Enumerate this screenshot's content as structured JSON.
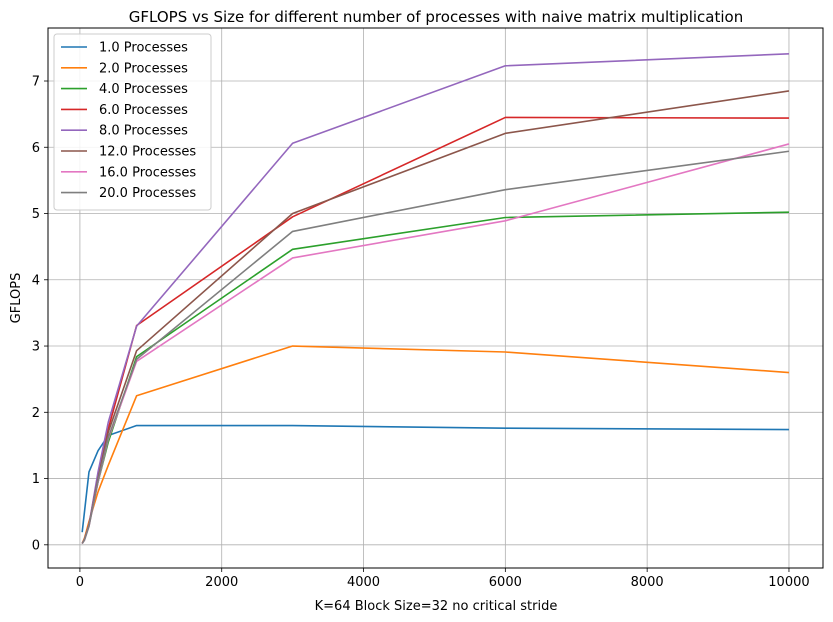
{
  "chart_data": {
    "type": "line",
    "title": "GFLOPS vs Size for different number of processes with naive matrix multiplication",
    "xlabel": "K=64 Block Size=32 no critical stride",
    "ylabel": "GFLOPS",
    "xlim": [
      -450,
      10480
    ],
    "ylim": [
      -0.35,
      7.8
    ],
    "xticks": [
      0,
      2000,
      4000,
      6000,
      8000,
      10000
    ],
    "yticks": [
      0,
      1,
      2,
      3,
      4,
      5,
      6,
      7
    ],
    "grid": true,
    "legend_position": "top-left",
    "series": [
      {
        "name": "1.0 Processes",
        "color": "#1f77b4",
        "x": [
          32,
          128,
          256,
          400,
          800,
          3000,
          6000,
          10000
        ],
        "y": [
          0.19,
          1.1,
          1.42,
          1.65,
          1.8,
          1.8,
          1.76,
          1.74
        ]
      },
      {
        "name": "2.0 Processes",
        "color": "#ff7f0e",
        "x": [
          32,
          64,
          128,
          256,
          400,
          800,
          3000,
          6000,
          10000
        ],
        "y": [
          0.02,
          0.1,
          0.35,
          0.8,
          1.2,
          2.25,
          3.0,
          2.91,
          2.6
        ]
      },
      {
        "name": "4.0 Processes",
        "color": "#2ca02c",
        "x": [
          32,
          64,
          128,
          256,
          400,
          800,
          3000,
          6000,
          10000
        ],
        "y": [
          0.02,
          0.08,
          0.3,
          0.95,
          1.55,
          2.84,
          4.46,
          4.94,
          5.02
        ]
      },
      {
        "name": "6.0 Processes",
        "color": "#d62728",
        "x": [
          32,
          64,
          128,
          256,
          400,
          800,
          3000,
          6000,
          10000
        ],
        "y": [
          0.02,
          0.08,
          0.3,
          1.05,
          1.75,
          3.31,
          4.95,
          6.45,
          6.44
        ]
      },
      {
        "name": "8.0 Processes",
        "color": "#9467bd",
        "x": [
          32,
          64,
          128,
          256,
          400,
          800,
          3000,
          6000,
          10000
        ],
        "y": [
          0.02,
          0.08,
          0.3,
          1.1,
          1.85,
          3.3,
          6.06,
          7.23,
          7.41
        ]
      },
      {
        "name": "12.0 Processes",
        "color": "#8c564b",
        "x": [
          32,
          64,
          128,
          256,
          400,
          800,
          3000,
          6000,
          10000
        ],
        "y": [
          0.02,
          0.08,
          0.3,
          1.0,
          1.7,
          2.93,
          5.0,
          6.21,
          6.85
        ]
      },
      {
        "name": "16.0 Processes",
        "color": "#e377c2",
        "x": [
          32,
          64,
          128,
          256,
          400,
          800,
          3000,
          6000,
          10000
        ],
        "y": [
          0.02,
          0.07,
          0.28,
          0.95,
          1.6,
          2.77,
          4.33,
          4.89,
          6.05
        ]
      },
      {
        "name": "20.0 Processes",
        "color": "#7f7f7f",
        "x": [
          32,
          64,
          128,
          256,
          400,
          800,
          3000,
          6000,
          10000
        ],
        "y": [
          0.02,
          0.07,
          0.28,
          0.97,
          1.62,
          2.8,
          4.73,
          5.36,
          5.94
        ]
      }
    ]
  }
}
